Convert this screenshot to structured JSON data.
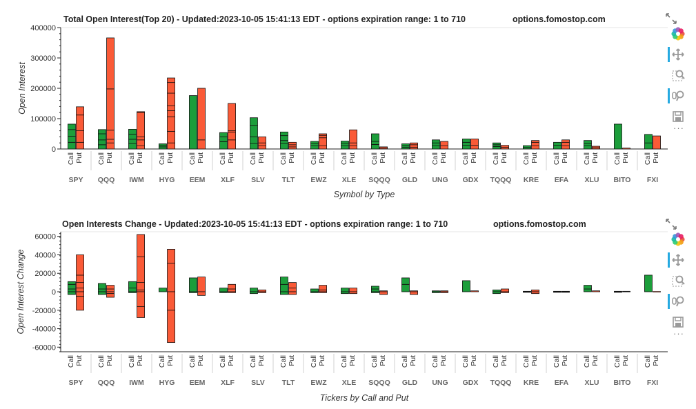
{
  "colors": {
    "call": "#1c9e3b",
    "put": "#fa5a37",
    "outline": "#111111",
    "title": "#222222",
    "tick": "#444444",
    "group": "#666666"
  },
  "tickers": [
    "SPY",
    "QQQ",
    "IWM",
    "HYG",
    "EEM",
    "XLF",
    "SLV",
    "TLT",
    "EWZ",
    "XLE",
    "SQQQ",
    "GLD",
    "UNG",
    "GDX",
    "TQQQ",
    "KRE",
    "EFA",
    "XLU",
    "BITO",
    "FXI"
  ],
  "factor_labels": [
    "Call",
    "Put"
  ],
  "toolbar": {
    "tools": [
      {
        "name": "bokeh-logo-icon",
        "active": false
      },
      {
        "name": "pan-icon",
        "active": true
      },
      {
        "name": "box-zoom-icon",
        "active": false
      },
      {
        "name": "wheel-zoom-icon",
        "active": true
      },
      {
        "name": "save-icon",
        "active": false
      }
    ],
    "more": "···"
  },
  "chart_data": [
    {
      "type": "bar",
      "stacked": true,
      "title": "Total Open Interest(Top 20) - Updated:2023-10-05 15:41:13 EDT - options expiration range: 1 to 710",
      "site": "options.fomostop.com",
      "xlabel": "Symbol by Type",
      "ylabel": "Open Interest",
      "ylim": [
        0,
        400000
      ],
      "yticks": [
        0,
        100000,
        200000,
        300000,
        400000
      ],
      "series": [
        {
          "name": "Call",
          "values": [
            82000,
            64000,
            65000,
            17000,
            176000,
            54000,
            103000,
            56000,
            25000,
            26000,
            50000,
            17000,
            30000,
            33000,
            20000,
            11000,
            22000,
            28000,
            82000,
            48000
          ],
          "segments": [
            [
              22000,
              20000,
              22000,
              18000
            ],
            [
              14000,
              16000,
              20000,
              14000
            ],
            [
              18000,
              14000,
              17000,
              16000
            ],
            [
              7000,
              6000,
              4000
            ],
            [
              176000
            ],
            [
              24000,
              16000,
              14000
            ],
            [
              18000,
              22000,
              38000,
              25000
            ],
            [
              18000,
              10000,
              16000,
              12000
            ],
            [
              10000,
              8000,
              7000
            ],
            [
              10000,
              9000,
              7000
            ],
            [
              15000,
              10000,
              25000
            ],
            [
              6000,
              5000,
              6000
            ],
            [
              10000,
              10000,
              10000
            ],
            [
              12000,
              10000,
              11000
            ],
            [
              8000,
              6000,
              6000
            ],
            [
              5000,
              6000
            ],
            [
              12000,
              10000
            ],
            [
              10000,
              8000,
              10000
            ],
            [
              82000
            ],
            [
              20000,
              28000
            ]
          ]
        },
        {
          "name": "Put",
          "values": [
            139000,
            366000,
            123000,
            234000,
            200000,
            150000,
            40000,
            22000,
            50000,
            63000,
            7000,
            20000,
            25000,
            33000,
            12000,
            28000,
            30000,
            9000,
            3000,
            43000
          ],
          "segments": [
            [
              22000,
              38000,
              52000,
              27000
            ],
            [
              20000,
              12000,
              30000,
              136000,
              168000
            ],
            [
              10000,
              20000,
              10000,
              80000,
              3000
            ],
            [
              20000,
              38000,
              48000,
              20000,
              16000,
              42000,
              35000,
              15000
            ],
            [
              30000,
              170000
            ],
            [
              30000,
              26000,
              4000,
              90000
            ],
            [
              10000,
              10000,
              20000
            ],
            [
              7000,
              7000,
              8000
            ],
            [
              10000,
              27000,
              8000,
              5000
            ],
            [
              10000,
              10000,
              43000
            ],
            [
              3000,
              4000
            ],
            [
              6000,
              8000,
              6000
            ],
            [
              10000,
              15000
            ],
            [
              12000,
              21000
            ],
            [
              6000,
              6000
            ],
            [
              10000,
              12000,
              6000
            ],
            [
              10000,
              12000,
              8000
            ],
            [
              4000,
              5000
            ],
            [
              3000
            ],
            [
              43000
            ]
          ]
        }
      ]
    },
    {
      "type": "bar",
      "stacked": true,
      "diverging": true,
      "title": "Open Interests Change - Updated:2023-10-05 15:41:13 EDT - options expiration range: 1 to 710",
      "site": "options.fomostop.com",
      "xlabel": "Tickers by Call and Put",
      "ylabel": "Open Interest Change",
      "ylim": [
        -65000,
        65000
      ],
      "yticks": [
        -60000,
        -40000,
        -20000,
        0,
        20000,
        40000,
        60000
      ],
      "series": [
        {
          "name": "Call",
          "pos": [
            11000,
            9000,
            11000,
            4000,
            15000,
            4000,
            4000,
            16000,
            3000,
            4000,
            6000,
            15000,
            1000,
            12000,
            2000,
            500,
            500,
            7000,
            500,
            18000
          ],
          "neg": [
            -3000,
            -3000,
            -1000,
            0,
            -1000,
            -1000,
            -2000,
            -3000,
            -1000,
            -2000,
            -1000,
            0,
            -1000,
            0,
            -2000,
            -500,
            -500,
            0,
            -500,
            0
          ],
          "pos_segments": [
            [
              3000,
              5000,
              3000
            ],
            [
              3000,
              6000
            ],
            [
              4000,
              7000
            ],
            [
              4000
            ],
            [
              15000
            ],
            [
              4000
            ],
            [
              4000
            ],
            [
              8000,
              8000
            ],
            [
              3000
            ],
            [
              4000
            ],
            [
              3000,
              3000
            ],
            [
              8000,
              7000
            ],
            [
              1000
            ],
            [
              12000
            ],
            [
              2000
            ],
            [
              500
            ],
            [
              500
            ],
            [
              3000,
              4000
            ],
            [
              500
            ],
            [
              18000
            ]
          ],
          "neg_segments": [
            [
              -3000
            ],
            [
              -3000
            ],
            [
              -1000
            ],
            [],
            [
              -1000
            ],
            [
              -1000
            ],
            [
              -2000
            ],
            [
              -3000
            ],
            [
              -1000
            ],
            [
              -2000
            ],
            [
              -1000
            ],
            [],
            [
              -1000
            ],
            [],
            [
              -2000
            ],
            [
              -500
            ],
            [
              -500
            ],
            [],
            [
              -500
            ],
            []
          ]
        },
        {
          "name": "Put",
          "pos": [
            40000,
            7000,
            62000,
            46000,
            16000,
            8000,
            2000,
            10000,
            7000,
            4000,
            1000,
            1000,
            1000,
            1000,
            3000,
            2000,
            500,
            1000,
            500,
            0
          ],
          "neg": [
            -20000,
            -6000,
            -28000,
            -55000,
            -4000,
            -1000,
            -1000,
            -3000,
            -1000,
            -2000,
            -3000,
            -3000,
            -1000,
            0,
            -1000,
            -2000,
            -500,
            0,
            0,
            0
          ],
          "pos_segments": [
            [
              4000,
              6000,
              8000,
              22000
            ],
            [
              3000,
              4000
            ],
            [
              2000,
              8000,
              28000,
              24000
            ],
            [
              31000,
              15000
            ],
            [
              16000
            ],
            [
              3000,
              5000
            ],
            [
              2000
            ],
            [
              4000,
              6000
            ],
            [
              2000,
              5000
            ],
            [
              4000
            ],
            [
              1000
            ],
            [
              1000
            ],
            [
              1000
            ],
            [
              1000
            ],
            [
              3000
            ],
            [
              2000
            ],
            [
              500
            ],
            [
              1000
            ],
            [
              500
            ],
            []
          ],
          "neg_segments": [
            [
              -5000,
              -15000
            ],
            [
              -2000,
              -4000
            ],
            [
              -16000,
              -12000
            ],
            [
              -20000,
              -35000
            ],
            [
              -4000
            ],
            [
              -1000
            ],
            [
              -1000
            ],
            [
              -3000
            ],
            [
              -1000
            ],
            [
              -2000
            ],
            [
              -3000
            ],
            [
              -3000
            ],
            [
              -1000
            ],
            [],
            [
              -1000
            ],
            [
              -2000
            ],
            [
              -500
            ],
            [],
            [],
            []
          ]
        }
      ]
    }
  ]
}
